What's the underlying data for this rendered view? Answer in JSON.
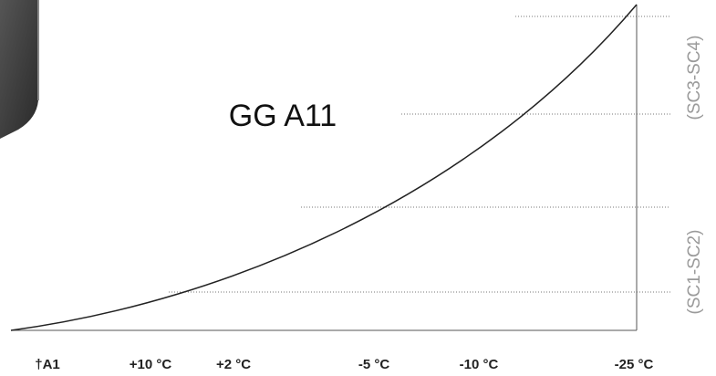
{
  "title": "GG A11",
  "side_labels": [
    "(SC3-SC4)",
    "(SC1-SC2)"
  ],
  "bottom_labels": [
    "†A1",
    "+10 °C",
    "+2 °C",
    "-5 °C",
    "-10 °C",
    "-25 °C"
  ]
}
